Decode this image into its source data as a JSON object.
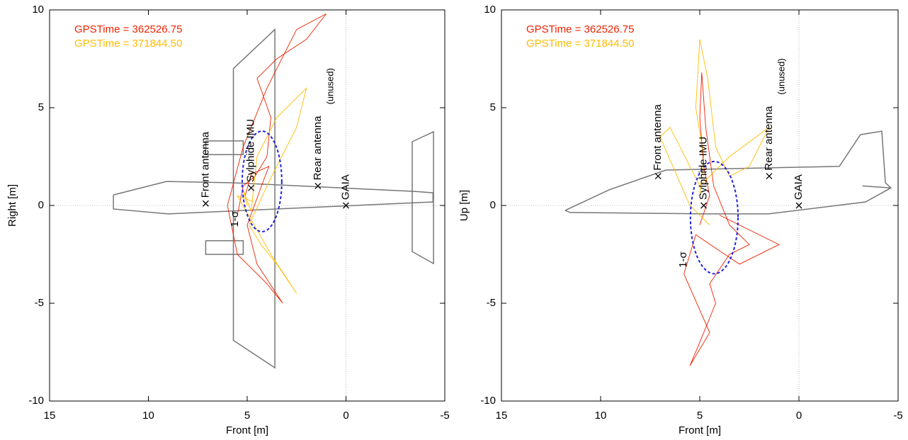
{
  "chart_data": [
    {
      "type": "line",
      "x_label": "Front [m]",
      "y_label": "Right [m]",
      "xlim": [
        15,
        -5
      ],
      "ylim": [
        -10,
        10
      ],
      "xticks": [
        15,
        10,
        5,
        0,
        -5
      ],
      "yticks": [
        -10,
        -5,
        0,
        5,
        10
      ],
      "zero_lines": true,
      "series": [
        {
          "name": "GPSTime = 362526.75",
          "color": "#ee2200",
          "x": [
            5.5,
            5.2,
            4.6,
            4.0,
            3.8,
            4.5,
            3.5,
            2.0,
            1.0,
            2.5,
            4.0,
            5.2,
            6.0,
            5.5,
            4.0,
            3.2,
            4.5,
            5.0,
            4.2,
            3.9,
            4.8,
            5.1
          ],
          "y": [
            -0.5,
            1.0,
            1.5,
            2.5,
            4.5,
            6.5,
            7.5,
            8.5,
            9.8,
            9.0,
            6.0,
            3.0,
            0.0,
            -2.5,
            -4.0,
            -5.0,
            -3.0,
            -1.0,
            1.2,
            2.0,
            1.6,
            0.5
          ]
        },
        {
          "name": "GPSTime = 371844.50",
          "color": "#ffbb00",
          "x": [
            5.0,
            5.2,
            4.8,
            4.5,
            3.5,
            2.0,
            2.5,
            4.0,
            4.9,
            4.3,
            3.5,
            2.5,
            3.8,
            5.5,
            4.7
          ],
          "y": [
            0.0,
            0.8,
            -0.3,
            2.5,
            4.5,
            6.0,
            4.0,
            1.0,
            -1.0,
            -2.0,
            -3.0,
            -4.5,
            -2.5,
            0.5,
            0.2
          ]
        }
      ],
      "outline": {
        "color": "#777777",
        "x": [
          11.77,
          9.09,
          5.68,
          -3.46,
          -4.4,
          -4.4,
          9.0,
          11.77,
          11.77,
          null,
          5.7,
          3.6,
          3.6,
          5.7,
          5.7,
          null,
          -3.35,
          -4.43,
          -4.43,
          -3.35,
          -3.35,
          null,
          7.1,
          5.2,
          5.2,
          7.1,
          7.1,
          null,
          7.1,
          5.2,
          5.2,
          7.1,
          7.1
        ],
        "y": [
          0.54,
          1.23,
          1.16,
          0.72,
          0.65,
          0.18,
          -0.43,
          -0.18,
          0.54,
          null,
          7.0,
          9.0,
          -8.3,
          -6.9,
          7.0,
          null,
          3.26,
          3.77,
          -2.97,
          -2.36,
          3.26,
          null,
          3.3,
          3.3,
          2.6,
          2.6,
          3.3,
          null,
          -1.8,
          -1.8,
          -2.5,
          -2.5,
          -1.8
        ]
      },
      "markers": [
        {
          "label": "Front antenna",
          "x": 7.1,
          "y": 0.1
        },
        {
          "label": "Sylphide IMU",
          "x": 4.8,
          "y": 0.9
        },
        {
          "label": "Rear antenna",
          "x": 1.42,
          "y": 1.0,
          "note": "(unused)"
        },
        {
          "label": "GAIA",
          "x": 0,
          "y": 0
        }
      ],
      "ellipse": {
        "center": [
          4.25,
          1.23
        ],
        "radii": [
          1.0,
          2.57
        ],
        "label": "1-σ",
        "color": "#2222dd"
      }
    },
    {
      "type": "line",
      "x_label": "Front [m]",
      "y_label": "Up [m]",
      "xlim": [
        15,
        -5
      ],
      "ylim": [
        -10,
        10
      ],
      "xticks": [
        15,
        10,
        5,
        0,
        -5
      ],
      "yticks": [
        -10,
        -5,
        0,
        5,
        10
      ],
      "zero_lines": true,
      "series": [
        {
          "name": "GPSTime = 362526.75",
          "color": "#ee2200",
          "x": [
            5.0,
            4.5,
            4.8,
            5.0,
            4.9,
            4.7,
            4.3,
            3.5,
            2.5,
            3.5,
            4.5,
            4.2,
            5.0,
            5.5,
            4.5,
            5.8,
            5.2,
            3.0,
            1.0,
            4.0
          ],
          "y": [
            -1.0,
            0.5,
            2.0,
            4.5,
            6.8,
            4.0,
            1.0,
            -1.0,
            -2.0,
            -2.5,
            -4.0,
            -5.0,
            -7.0,
            -8.2,
            -6.5,
            -3.5,
            -1.5,
            -3.0,
            -2.0,
            -0.5
          ]
        },
        {
          "name": "GPSTime = 371844.50",
          "color": "#ffbb00",
          "x": [
            5.0,
            4.8,
            5.2,
            5.0,
            4.6,
            4.2,
            3.5,
            2.5,
            1.5,
            3.5,
            5.0,
            6.5,
            7.0,
            5.5,
            4.5
          ],
          "y": [
            0.5,
            2.5,
            5.0,
            8.5,
            6.5,
            3.0,
            1.5,
            2.0,
            4.0,
            2.5,
            1.0,
            4.0,
            3.5,
            0.0,
            -1.0
          ]
        }
      ],
      "outline": {
        "color": "#777777",
        "x": [
          11.79,
          9.57,
          6.71,
          -2.04,
          -3.1,
          -4.18,
          -4.36,
          -4.64,
          -3.36,
          1.54,
          4.57,
          11.54,
          11.79,
          null,
          -3.2,
          -4.64
        ],
        "y": [
          -0.25,
          0.8,
          1.81,
          2.0,
          3.62,
          3.8,
          1.16,
          0.9,
          0.18,
          -0.43,
          -0.43,
          -0.36,
          -0.25,
          null,
          1.0,
          0.9
        ]
      },
      "markers": [
        {
          "label": "Front antenna",
          "x": 7.1,
          "y": 1.5
        },
        {
          "label": "Sylphide IMU",
          "x": 4.8,
          "y": 0
        },
        {
          "label": "Rear antenna",
          "x": 1.5,
          "y": 1.5,
          "note": "(unused)"
        },
        {
          "label": "GAIA",
          "x": 0,
          "y": 0
        }
      ],
      "ellipse": {
        "center": [
          4.27,
          -0.62
        ],
        "radii": [
          1.2,
          2.87
        ],
        "label": "1-σ",
        "color": "#2222dd"
      }
    }
  ]
}
